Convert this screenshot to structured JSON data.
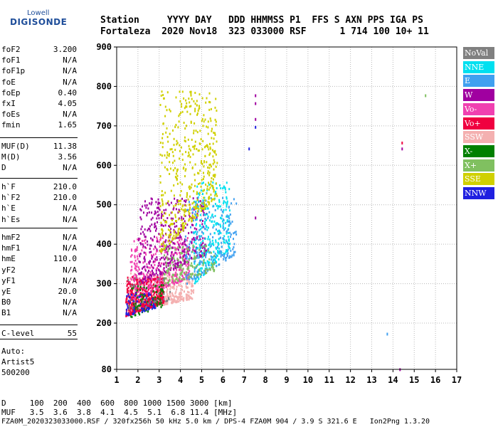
{
  "logo": {
    "top": "Lowell",
    "main": "DIGISONDE"
  },
  "header": {
    "line1": "Station     YYYY DAY   DDD HHMMSS P1  FFS S AXN PPS IGA PS",
    "line2": "Fortaleza  2020 Nov18  323 033000 RSF      1 714 100 10+ 11"
  },
  "params_group1": [
    {
      "label": "foF2",
      "value": "3.200"
    },
    {
      "label": "foF1",
      "value": "N/A"
    },
    {
      "label": "foF1p",
      "value": "N/A"
    },
    {
      "label": "foE",
      "value": "N/A"
    },
    {
      "label": "foEp",
      "value": "0.40"
    },
    {
      "label": "fxI",
      "value": "4.05"
    },
    {
      "label": "foEs",
      "value": "N/A"
    },
    {
      "label": "fmin",
      "value": "1.65"
    }
  ],
  "params_group2": [
    {
      "label": "MUF(D)",
      "value": "11.38"
    },
    {
      "label": "M(D)",
      "value": "3.56"
    },
    {
      "label": "D",
      "value": "N/A"
    }
  ],
  "params_group3": [
    {
      "label": "h`F",
      "value": "210.0"
    },
    {
      "label": "h`F2",
      "value": "210.0"
    },
    {
      "label": "h`E",
      "value": "N/A"
    },
    {
      "label": "h`Es",
      "value": "N/A"
    }
  ],
  "params_group4": [
    {
      "label": "hmF2",
      "value": "N/A"
    },
    {
      "label": "hmF1",
      "value": "N/A"
    },
    {
      "label": "hmE",
      "value": "110.0"
    },
    {
      "label": "yF2",
      "value": "N/A"
    },
    {
      "label": "yF1",
      "value": "N/A"
    },
    {
      "label": "yE",
      "value": "20.0"
    },
    {
      "label": "B0",
      "value": "N/A"
    },
    {
      "label": "B1",
      "value": "N/A"
    }
  ],
  "params_group5": [
    {
      "label": "C-level",
      "value": "55"
    }
  ],
  "autoscaling": {
    "line1": "Auto:",
    "line2": "Artist5",
    "line3": "500200"
  },
  "bottom": {
    "d_line": "D     100  200  400  600  800 1000 1500 3000 [km]",
    "muf_line": "MUF   3.5  3.6  3.8  4.1  4.5  5.1  6.8 11.4 [MHz]",
    "file_line": "FZA0M_2020323033000.RSF / 320fx256h 50 kHz 5.0 km / DPS-4 FZA0M 904 / 3.9 S 321.6 E   Ion2Png 1.3.20"
  },
  "legend": [
    {
      "label": "NoVal",
      "color": "#808080"
    },
    {
      "label": "NNE",
      "color": "#00e0f0"
    },
    {
      "label": "E",
      "color": "#40a0f0"
    },
    {
      "label": "W",
      "color": "#a000a0"
    },
    {
      "label": "Vo-",
      "color": "#f040b0"
    },
    {
      "label": "Vo+",
      "color": "#f00040"
    },
    {
      "label": "SSW",
      "color": "#f4b0b0"
    },
    {
      "label": "X-",
      "color": "#008000"
    },
    {
      "label": "X+",
      "color": "#80c060"
    },
    {
      "label": "SSE",
      "color": "#d0d000"
    },
    {
      "label": "NNW",
      "color": "#2020e0"
    }
  ],
  "chart_data": {
    "type": "scatter",
    "xlabel": "",
    "ylabel": "",
    "xlim": [
      1,
      17
    ],
    "ylim": [
      80,
      900
    ],
    "x_ticks": [
      1,
      2,
      3,
      4,
      5,
      6,
      7,
      8,
      9,
      10,
      11,
      12,
      13,
      14,
      15,
      16,
      17
    ],
    "y_ticks": [
      80,
      200,
      300,
      400,
      500,
      600,
      700,
      800,
      900
    ],
    "grid": "dotted",
    "legend_position": "right",
    "clusters": [
      {
        "name": "SSW",
        "x_range": [
          1.5,
          4.6
        ],
        "y_range": [
          230,
          330
        ],
        "count": 400
      },
      {
        "name": "Vo+",
        "x_range": [
          1.4,
          3.2
        ],
        "y_range": [
          220,
          320
        ],
        "count": 520
      },
      {
        "name": "Vo-",
        "x_range": [
          1.6,
          4.4
        ],
        "y_range": [
          260,
          420
        ],
        "count": 360
      },
      {
        "name": "W",
        "x_range": [
          2.0,
          5.2
        ],
        "y_range": [
          300,
          520
        ],
        "count": 440
      },
      {
        "name": "NNE",
        "x_range": [
          4.6,
          6.3
        ],
        "y_range": [
          300,
          560
        ],
        "count": 300
      },
      {
        "name": "E",
        "x_range": [
          4.2,
          6.6
        ],
        "y_range": [
          300,
          520
        ],
        "count": 200
      },
      {
        "name": "SSE",
        "x_range": [
          3.0,
          5.7
        ],
        "y_range": [
          380,
          790
        ],
        "count": 480
      },
      {
        "name": "X+",
        "x_range": [
          3.2,
          5.6
        ],
        "y_range": [
          300,
          400
        ],
        "count": 150
      },
      {
        "name": "X-",
        "x_range": [
          1.5,
          3.2
        ],
        "y_range": [
          215,
          300
        ],
        "count": 80
      },
      {
        "name": "NNW",
        "x_range": [
          1.4,
          2.8
        ],
        "y_range": [
          220,
          280
        ],
        "count": 60
      },
      {
        "name": "NoVal",
        "x_range": [
          1.5,
          3.5
        ],
        "y_range": [
          230,
          320
        ],
        "count": 40
      }
    ],
    "outliers": [
      {
        "series": "W",
        "x": 7.5,
        "y": 780
      },
      {
        "series": "W",
        "x": 7.5,
        "y": 760
      },
      {
        "series": "W",
        "x": 7.5,
        "y": 720
      },
      {
        "series": "NNW",
        "x": 7.5,
        "y": 700
      },
      {
        "series": "NNW",
        "x": 7.2,
        "y": 645
      },
      {
        "series": "W",
        "x": 7.5,
        "y": 470
      },
      {
        "series": "Vo+",
        "x": 14.4,
        "y": 660
      },
      {
        "series": "W",
        "x": 14.4,
        "y": 645
      },
      {
        "series": "X+",
        "x": 15.5,
        "y": 780
      },
      {
        "series": "E",
        "x": 13.7,
        "y": 175
      },
      {
        "series": "W",
        "x": 14.3,
        "y": 83
      }
    ]
  }
}
